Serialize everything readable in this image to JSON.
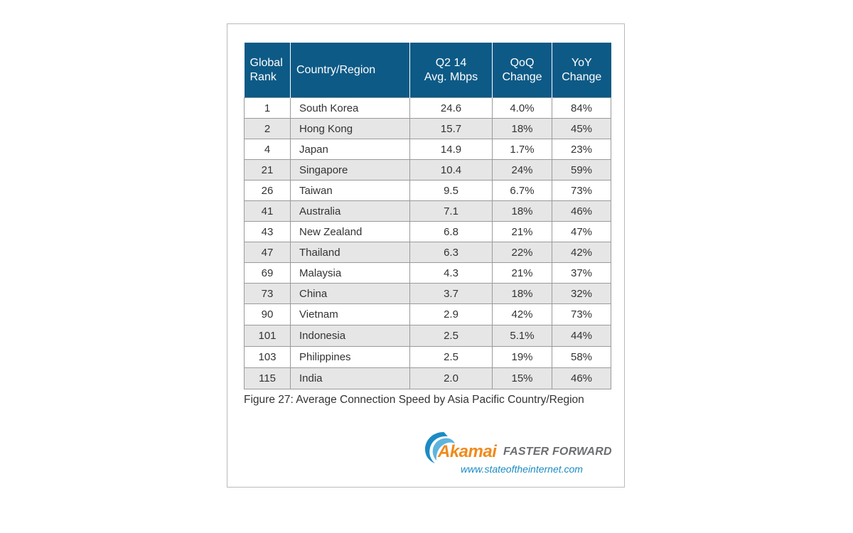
{
  "chart_data": {
    "type": "table",
    "columns": [
      "Global\nRank",
      "Country/Region",
      "Q2 14\nAvg. Mbps",
      "QoQ\nChange",
      "YoY\nChange"
    ],
    "rows": [
      [
        "1",
        "South Korea",
        "24.6",
        "4.0%",
        "84%"
      ],
      [
        "2",
        "Hong Kong",
        "15.7",
        "18%",
        "45%"
      ],
      [
        "4",
        "Japan",
        "14.9",
        "1.7%",
        "23%"
      ],
      [
        "21",
        "Singapore",
        "10.4",
        "24%",
        "59%"
      ],
      [
        "26",
        "Taiwan",
        "9.5",
        "6.7%",
        "73%"
      ],
      [
        "41",
        "Australia",
        "7.1",
        "18%",
        "46%"
      ],
      [
        "43",
        "New Zealand",
        "6.8",
        "21%",
        "47%"
      ],
      [
        "47",
        "Thailand",
        "6.3",
        "22%",
        "42%"
      ],
      [
        "69",
        "Malaysia",
        "4.3",
        "21%",
        "37%"
      ],
      [
        "73",
        "China",
        "3.7",
        "18%",
        "32%"
      ],
      [
        "90",
        "Vietnam",
        "2.9",
        "42%",
        "73%"
      ],
      [
        "101",
        "Indonesia",
        "2.5",
        "5.1%",
        "44%"
      ],
      [
        "103",
        "Philippines",
        "2.5",
        "19%",
        "58%"
      ],
      [
        "115",
        "India",
        "2.0",
        "15%",
        "46%"
      ]
    ],
    "caption": "Figure 27: Average Connection Speed by Asia Pacific Country/Region"
  },
  "header": {
    "rank_line1": "Global",
    "rank_line2": "Rank",
    "country": "Country/Region",
    "speed_line1": "Q2 14",
    "speed_line2": "Avg. Mbps",
    "qoq_line1": "QoQ",
    "qoq_line2": "Change",
    "yoy_line1": "YoY",
    "yoy_line2": "Change"
  },
  "branding": {
    "logo_word": "Akamai",
    "tagline": "FASTER FORWARD",
    "url": "www.stateoftheinternet.com",
    "logo_icon": "akamai-swoosh-icon"
  },
  "colors": {
    "header_bg": "#0d5a86",
    "stripe": "#e6e6e6",
    "akamai_orange": "#f08a1c",
    "akamai_blue": "#1b8bc5"
  }
}
